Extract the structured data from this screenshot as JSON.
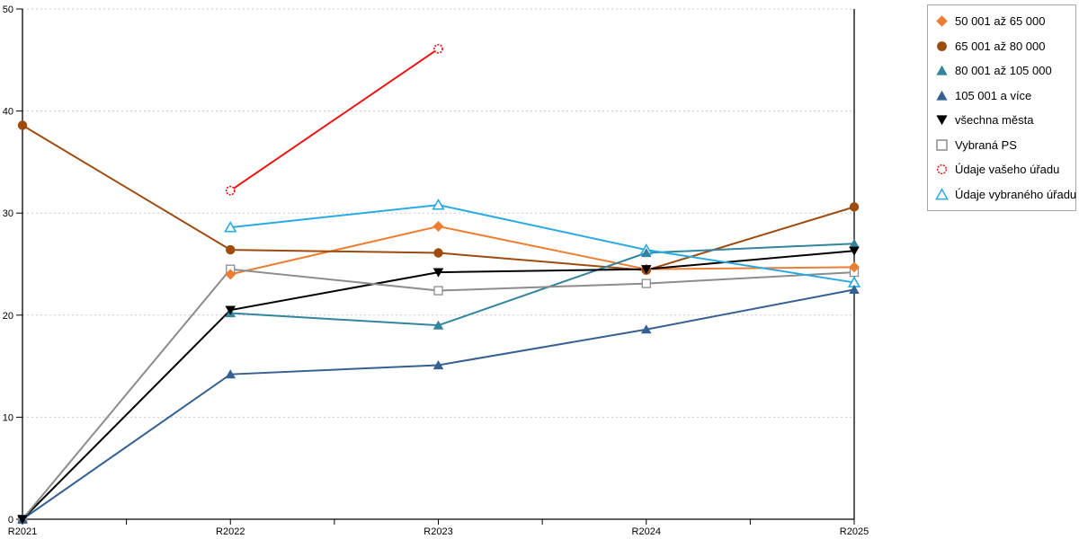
{
  "chart_data": {
    "type": "line",
    "title": "",
    "xlabel": "",
    "ylabel": "",
    "categories": [
      "R2021",
      "R2022",
      "R2023",
      "R2024",
      "R2025"
    ],
    "ylim": [
      0,
      50
    ],
    "yticks": [
      0,
      10,
      20,
      30,
      40,
      50
    ],
    "grid": "horizontal-dashed",
    "gridline_color": "#c9c9c9",
    "axis_color": "#000000",
    "legend_position": "top-right",
    "series": [
      {
        "name": "50 001 až 65 000",
        "color": "#ED7D31",
        "marker": "diamond",
        "fill": "solid",
        "values": [
          null,
          24.0,
          28.7,
          24.5,
          24.7
        ]
      },
      {
        "name": "65 001 až 80 000",
        "color": "#9E4B0E",
        "marker": "circle",
        "fill": "solid",
        "values": [
          38.6,
          26.4,
          26.1,
          24.4,
          30.6
        ]
      },
      {
        "name": "80 001 až 105 000",
        "color": "#31859C",
        "marker": "triangle-up",
        "fill": "solid",
        "values": [
          null,
          20.2,
          19.0,
          26.1,
          27.0
        ]
      },
      {
        "name": "105 001 a více",
        "color": "#366092",
        "marker": "triangle-up",
        "fill": "solid",
        "values": [
          0,
          14.2,
          15.1,
          18.6,
          22.5
        ]
      },
      {
        "name": "všechna města",
        "color": "#000000",
        "marker": "triangle-down",
        "fill": "solid",
        "values": [
          0,
          20.5,
          24.2,
          24.5,
          26.3
        ]
      },
      {
        "name": "Vybraná PS",
        "color": "#8C8C8C",
        "marker": "square",
        "fill": "open",
        "values": [
          0,
          24.5,
          22.4,
          23.1,
          24.2
        ]
      },
      {
        "name": "Údaje vašeho úřadu",
        "color": "#EE1111",
        "marker": "circle",
        "fill": "open",
        "values": [
          null,
          32.2,
          46.1,
          null,
          null
        ]
      },
      {
        "name": "Údaje vybraného úřadu",
        "color": "#29ABE2",
        "marker": "triangle-up",
        "fill": "open",
        "values": [
          null,
          28.6,
          30.8,
          26.4,
          23.2
        ]
      }
    ]
  }
}
